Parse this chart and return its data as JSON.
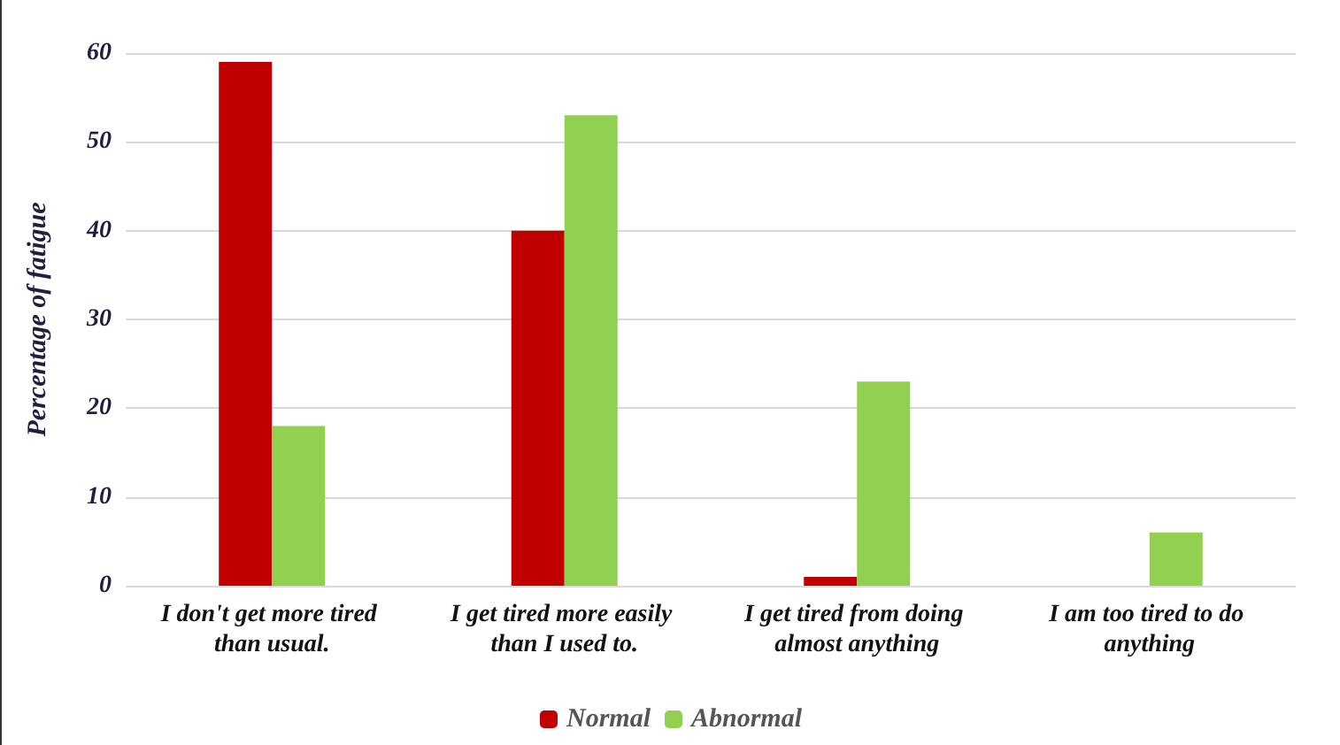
{
  "chart_data": {
    "type": "bar",
    "ylabel": "Percentage of fatigue",
    "categories": [
      "I don't get more tired than usual.",
      "I get tired more easily than I used to.",
      "I get tired from doing almost anything",
      "I am too tired to do anything"
    ],
    "series": [
      {
        "name": "Normal",
        "color": "#c00000",
        "values": [
          59,
          40,
          1,
          0
        ]
      },
      {
        "name": "Abnormal",
        "color": "#92d050",
        "values": [
          18,
          53,
          23,
          6
        ]
      }
    ],
    "ylim": [
      0,
      60
    ],
    "yticks": [
      0,
      10,
      20,
      30,
      40,
      50,
      60
    ],
    "grid": "y",
    "legend": "bottom"
  }
}
